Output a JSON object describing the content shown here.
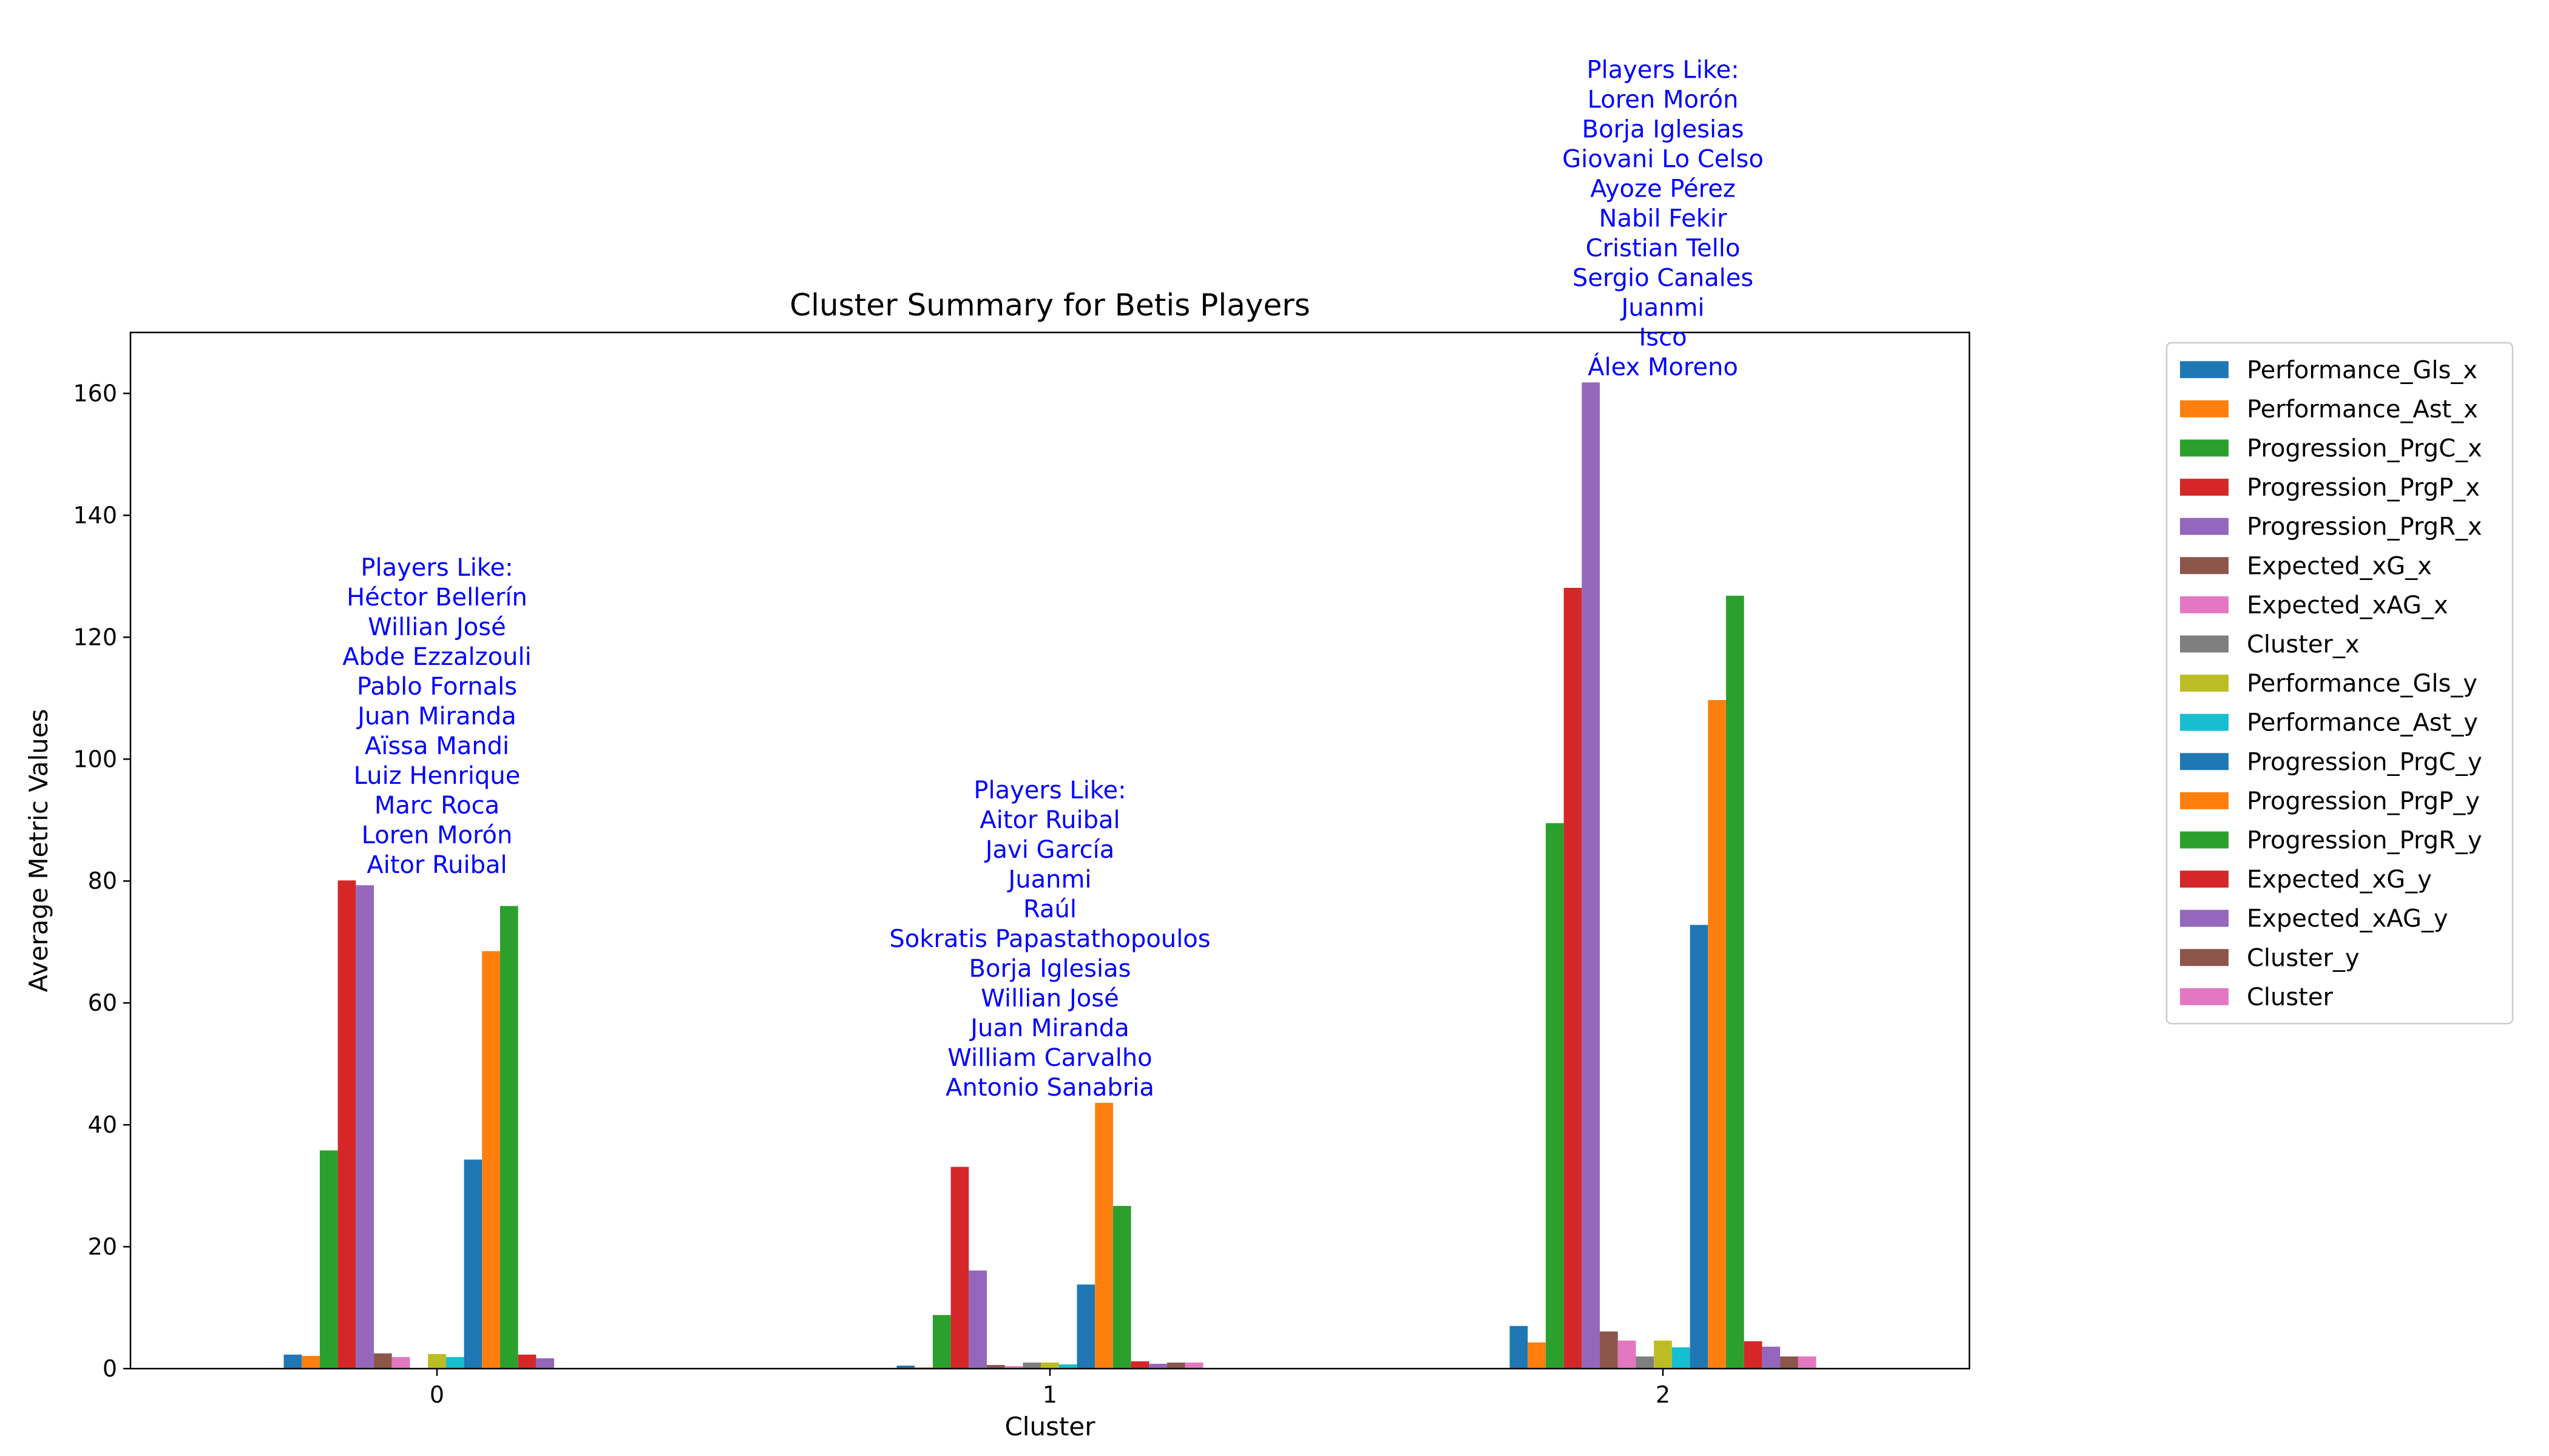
{
  "chart_data": {
    "type": "bar",
    "title": "Cluster Summary for Betis Players",
    "xlabel": "Cluster",
    "ylabel": "Average Metric Values",
    "categories": [
      "0",
      "1",
      "2"
    ],
    "ylim": [
      0,
      170
    ],
    "yticks": [
      0,
      20,
      40,
      60,
      80,
      100,
      120,
      140,
      160
    ],
    "grid": false,
    "legend_position": "outside-right",
    "series": [
      {
        "name": "Performance_Gls_x",
        "color": "#1f77b4",
        "values": [
          2.3,
          0.5,
          7.0
        ]
      },
      {
        "name": "Performance_Ast_x",
        "color": "#ff7f0e",
        "values": [
          2.1,
          0.2,
          4.3
        ]
      },
      {
        "name": "Progression_PrgC_x",
        "color": "#2ca02c",
        "values": [
          35.8,
          8.8,
          89.5
        ]
      },
      {
        "name": "Progression_PrgP_x",
        "color": "#d62728",
        "values": [
          80.1,
          33.1,
          128.1
        ]
      },
      {
        "name": "Progression_PrgR_x",
        "color": "#9467bd",
        "values": [
          79.3,
          16.1,
          161.8
        ]
      },
      {
        "name": "Expected_xG_x",
        "color": "#8c564b",
        "values": [
          2.5,
          0.6,
          6.1
        ]
      },
      {
        "name": "Expected_xAG_x",
        "color": "#e377c2",
        "values": [
          1.9,
          0.4,
          4.6
        ]
      },
      {
        "name": "Cluster_x",
        "color": "#7f7f7f",
        "values": [
          0,
          1,
          2
        ]
      },
      {
        "name": "Performance_Gls_y",
        "color": "#bcbd22",
        "values": [
          2.4,
          1.0,
          4.6
        ]
      },
      {
        "name": "Performance_Ast_y",
        "color": "#17becf",
        "values": [
          1.9,
          0.7,
          3.5
        ]
      },
      {
        "name": "Progression_PrgC_y",
        "color": "#1f77b4",
        "values": [
          34.3,
          13.8,
          72.8
        ]
      },
      {
        "name": "Progression_PrgP_y",
        "color": "#ff7f0e",
        "values": [
          68.5,
          43.6,
          109.7
        ]
      },
      {
        "name": "Progression_PrgR_y",
        "color": "#2ca02c",
        "values": [
          75.9,
          26.7,
          126.8
        ]
      },
      {
        "name": "Expected_xG_y",
        "color": "#d62728",
        "values": [
          2.3,
          1.2,
          4.5
        ]
      },
      {
        "name": "Expected_xAG_y",
        "color": "#9467bd",
        "values": [
          1.7,
          0.8,
          3.6
        ]
      },
      {
        "name": "Cluster_y",
        "color": "#8c564b",
        "values": [
          0,
          1,
          2
        ]
      },
      {
        "name": "Cluster",
        "color": "#e377c2",
        "values": [
          0,
          1,
          2
        ]
      }
    ],
    "annotations": [
      {
        "category": "0",
        "lines": [
          "Players Like:",
          "Héctor Bellerín",
          "Willian José",
          "Abde Ezzalzouli",
          "Pablo Fornals",
          "Juan Miranda",
          "Aïssa Mandi",
          "Luiz Henrique",
          "Marc Roca",
          "Loren Morón",
          "Aitor Ruibal"
        ]
      },
      {
        "category": "1",
        "lines": [
          "Players Like:",
          "Aitor Ruibal",
          "Javi García",
          "Juanmi",
          "Raúl",
          "Sokratis Papastathopoulos",
          "Borja Iglesias",
          "Willian José",
          "Juan Miranda",
          "William Carvalho",
          "Antonio Sanabria"
        ]
      },
      {
        "category": "2",
        "lines": [
          "Players Like:",
          "Loren Morón",
          "Borja Iglesias",
          "Giovani Lo Celso",
          "Ayoze Pérez",
          "Nabil Fekir",
          "Cristian Tello",
          "Sergio Canales",
          "Juanmi",
          "Isco",
          "Álex Moreno"
        ]
      }
    ]
  }
}
